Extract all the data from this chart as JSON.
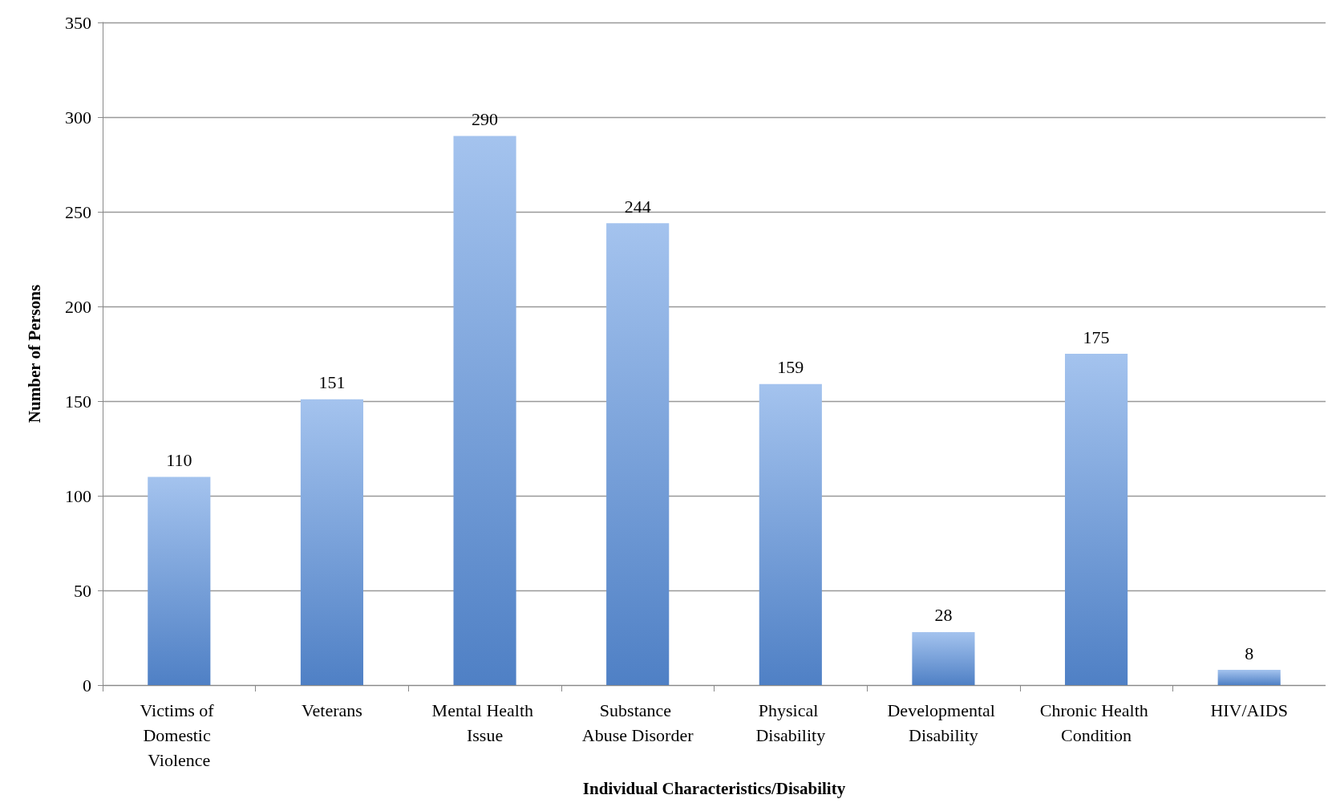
{
  "chart_data": {
    "type": "bar",
    "xlabel": "Individual Characteristics/Disability",
    "ylabel": "Number of Persons",
    "categories": [
      "Victims of Domestic Violence",
      "Veterans",
      "Mental Health Issue",
      "Substance Abuse Disorder",
      "Physical Disability",
      "Developmental Disability",
      "Chronic Health Condition",
      "HIV/AIDS"
    ],
    "values": [
      110,
      151,
      290,
      244,
      159,
      28,
      175,
      8
    ],
    "color": "#5a92e0",
    "ylim": [
      0,
      350
    ],
    "yticks": [
      0,
      50,
      100,
      150,
      200,
      250,
      300,
      350
    ],
    "grid": "y",
    "data_labels": true
  }
}
